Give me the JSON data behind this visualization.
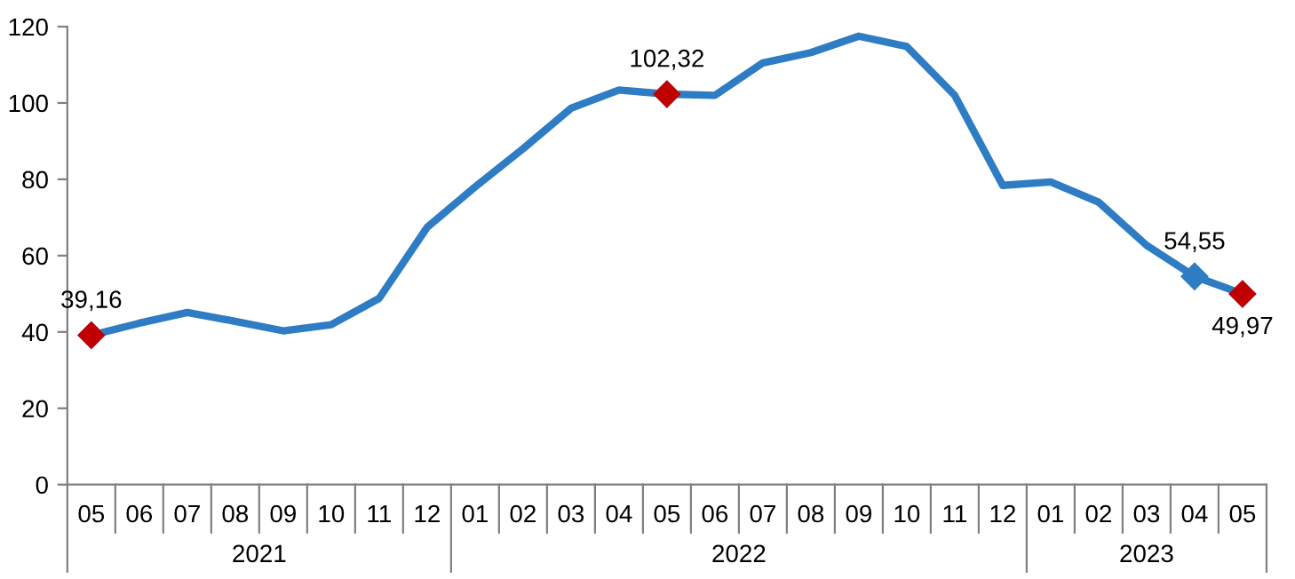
{
  "chart_data": {
    "type": "line",
    "categories": [
      "05",
      "06",
      "07",
      "08",
      "09",
      "10",
      "11",
      "12",
      "01",
      "02",
      "03",
      "04",
      "05",
      "06",
      "07",
      "08",
      "09",
      "10",
      "11",
      "12",
      "01",
      "02",
      "03",
      "04",
      "05"
    ],
    "series": [
      {
        "color": "#2e7dc4",
        "values": [
          39.16,
          42.3,
          45.1,
          42.8,
          40.3,
          41.9,
          48.8,
          67.4,
          78.0,
          88.0,
          98.6,
          103.4,
          102.32,
          102.0,
          110.5,
          113.2,
          117.5,
          114.8,
          102.0,
          78.4,
          79.3,
          74.0,
          62.7,
          54.55,
          49.97
        ],
        "value_labels": [
          "39,16",
          null,
          null,
          null,
          null,
          null,
          null,
          null,
          null,
          null,
          null,
          null,
          "102,32",
          null,
          null,
          null,
          null,
          null,
          null,
          null,
          null,
          null,
          null,
          "54,55",
          "49,97"
        ],
        "colors": [
          "#c00000",
          null,
          null,
          null,
          null,
          null,
          null,
          null,
          null,
          null,
          null,
          null,
          "#c00000",
          null,
          null,
          null,
          null,
          null,
          null,
          null,
          null,
          null,
          null,
          "#2e7dc4",
          "#c00000"
        ]
      }
    ],
    "annotations": [
      "2021",
      "2022",
      "2023"
    ],
    "ylim": [
      0,
      120
    ],
    "yticks": [
      0,
      20,
      40,
      60,
      80,
      100,
      120
    ],
    "grid": false,
    "legend": false
  }
}
